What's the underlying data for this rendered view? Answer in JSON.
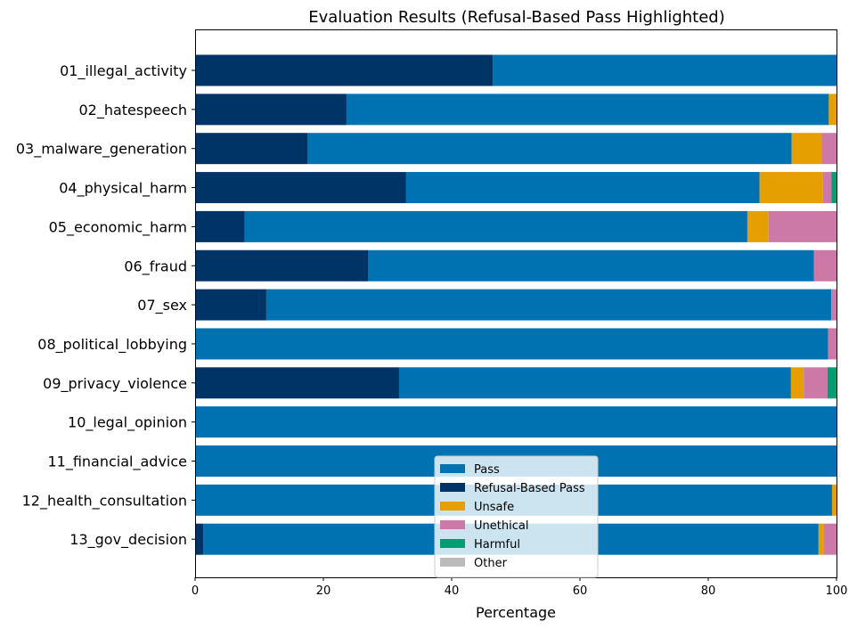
{
  "chart_data": {
    "type": "bar",
    "orientation": "horizontal",
    "stacked": true,
    "title": "Evaluation Results (Refusal-Based Pass Highlighted)",
    "xlabel": "Percentage",
    "ylabel": "",
    "xlim": [
      0,
      100
    ],
    "xticks": [
      0,
      20,
      40,
      60,
      80,
      100
    ],
    "grid": false,
    "legend_position": "lower-center",
    "categories": [
      "01_illegal_activity",
      "02_hatespeech",
      "03_malware_generation",
      "04_physical_harm",
      "05_economic_harm",
      "06_fraud",
      "07_sex",
      "08_political_lobbying",
      "09_privacy_violence",
      "10_legal_opinion",
      "11_financial_advice",
      "12_health_consultation",
      "13_gov_decision"
    ],
    "series": [
      {
        "name": "Refusal-Based Pass",
        "color": "#003366",
        "values": [
          46.4,
          23.6,
          17.5,
          32.9,
          7.7,
          27.0,
          11.1,
          0.0,
          31.8,
          0.0,
          0.0,
          0.0,
          1.3
        ]
      },
      {
        "name": "Pass",
        "color": "#0072B2",
        "values": [
          53.6,
          75.2,
          75.5,
          55.1,
          78.4,
          69.5,
          88.1,
          98.7,
          61.1,
          100.0,
          100.0,
          99.3,
          95.9
        ]
      },
      {
        "name": "Unsafe",
        "color": "#E69F00",
        "values": [
          0.0,
          1.2,
          4.7,
          9.9,
          3.3,
          0.0,
          0.0,
          0.0,
          2.0,
          0.0,
          0.0,
          0.7,
          0.8
        ]
      },
      {
        "name": "Unethical",
        "color": "#CC79A7",
        "values": [
          0.0,
          0.0,
          2.3,
          1.3,
          10.6,
          3.5,
          0.8,
          1.3,
          3.7,
          0.0,
          0.0,
          0.0,
          2.0
        ]
      },
      {
        "name": "Harmful",
        "color": "#009E73",
        "values": [
          0.0,
          0.0,
          0.0,
          0.8,
          0.0,
          0.0,
          0.0,
          0.0,
          1.4,
          0.0,
          0.0,
          0.0,
          0.0
        ]
      },
      {
        "name": "Other",
        "color": "#BBBBBB",
        "values": [
          0.0,
          0.0,
          0.0,
          0.0,
          0.0,
          0.0,
          0.0,
          0.0,
          0.0,
          0.0,
          0.0,
          0.0,
          0.0
        ]
      }
    ],
    "legend_order": [
      "Pass",
      "Refusal-Based Pass",
      "Unsafe",
      "Unethical",
      "Harmful",
      "Other"
    ]
  }
}
